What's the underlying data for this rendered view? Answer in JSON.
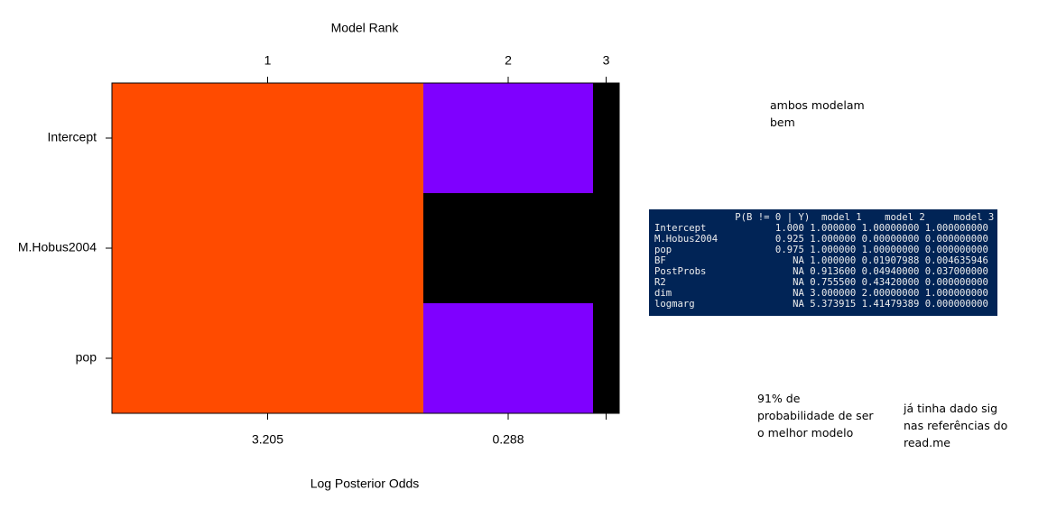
{
  "plot": {
    "title": "Model Rank",
    "xlabel": "Log Posterior Odds",
    "rows": [
      "Intercept",
      "M.Hobus2004",
      "pop"
    ],
    "models": [
      {
        "rank": 1,
        "log_odds": 3.205,
        "cells": [
          "#ff4b00",
          "#ff4b00",
          "#ff4b00"
        ]
      },
      {
        "rank": 2,
        "log_odds": 0.288,
        "cells": [
          "#7f00ff",
          "#000000",
          "#7f00ff"
        ]
      },
      {
        "rank": 3,
        "log_odds": null,
        "cells": [
          "#000000",
          "#000000",
          "#000000"
        ]
      }
    ]
  },
  "notes": {
    "top": [
      "ambos modelam",
      "bem"
    ],
    "prob": [
      "91% de",
      "probabilidade de ser",
      "o melhor modelo"
    ],
    "refs": [
      "já tinha dado sig",
      "nas referências do",
      "read.me"
    ]
  },
  "console": {
    "lines": [
      "              P(B != 0 | Y)  model 1    model 2     model 3",
      "Intercept            1.000 1.000000 1.00000000 1.000000000",
      "M.Hobus2004          0.925 1.000000 0.00000000 0.000000000",
      "pop                  0.975 1.000000 1.00000000 0.000000000",
      "BF                      NA 1.000000 0.01907988 0.004635946",
      "PostProbs               NA 0.913600 0.04940000 0.037000000",
      "R2                      NA 0.755500 0.43420000 0.000000000",
      "dim                     NA 3.000000 2.00000000 1.000000000",
      "logmarg                 NA 5.373915 1.41479389 0.000000000"
    ]
  }
}
